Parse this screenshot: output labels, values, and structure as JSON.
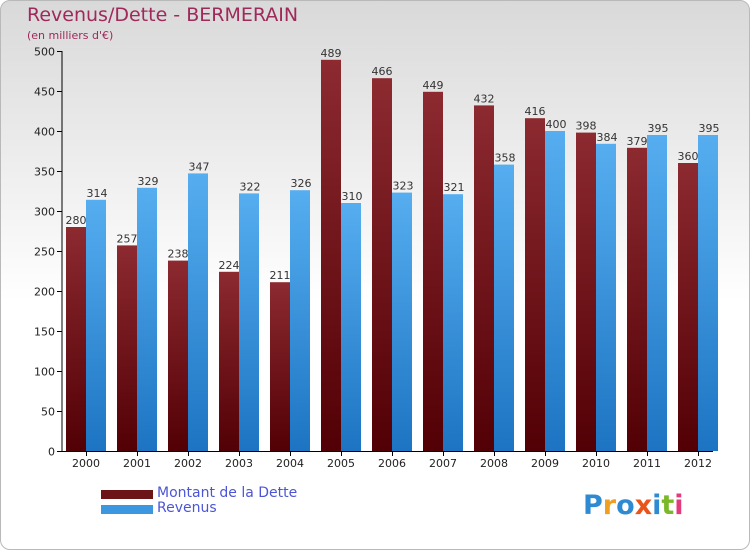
{
  "chart_title": "Revenus/Dette - BERMERAIN",
  "chart_subtitle": "(en milliers d'€)",
  "colors": {
    "dette": "#7a1f24",
    "revenus": "#3c97e0",
    "title": "#a0285a",
    "legend_text": "#4b55d6"
  },
  "legend": [
    {
      "label": "Montant de la Dette",
      "color": "#6b1518"
    },
    {
      "label": "Revenus",
      "color": "#3c97e0"
    }
  ],
  "logo": {
    "text": "Proxiti",
    "colors": [
      "#2f8bd1",
      "#f0a020",
      "#2f8bd1",
      "#e8541a",
      "#2f8bd1",
      "#7ab82a",
      "#e23a7a"
    ]
  },
  "chart_data": {
    "type": "bar",
    "categories": [
      "2000",
      "2001",
      "2002",
      "2003",
      "2004",
      "2005",
      "2006",
      "2007",
      "2008",
      "2009",
      "2010",
      "2011",
      "2012"
    ],
    "series": [
      {
        "name": "Montant de la Dette",
        "values": [
          280,
          257,
          238,
          224,
          211,
          489,
          466,
          449,
          432,
          416,
          398,
          379,
          360
        ]
      },
      {
        "name": "Revenus",
        "values": [
          314,
          329,
          347,
          322,
          326,
          310,
          323,
          321,
          358,
          400,
          384,
          395,
          395
        ]
      }
    ],
    "title": "Revenus/Dette - BERMERAIN",
    "ylabel": "(en milliers d'€)",
    "ylim": [
      0,
      500
    ],
    "yticks": [
      0,
      50,
      100,
      150,
      200,
      250,
      300,
      350,
      400,
      450,
      500
    ],
    "grid": false,
    "legend_position": "bottom-left"
  }
}
